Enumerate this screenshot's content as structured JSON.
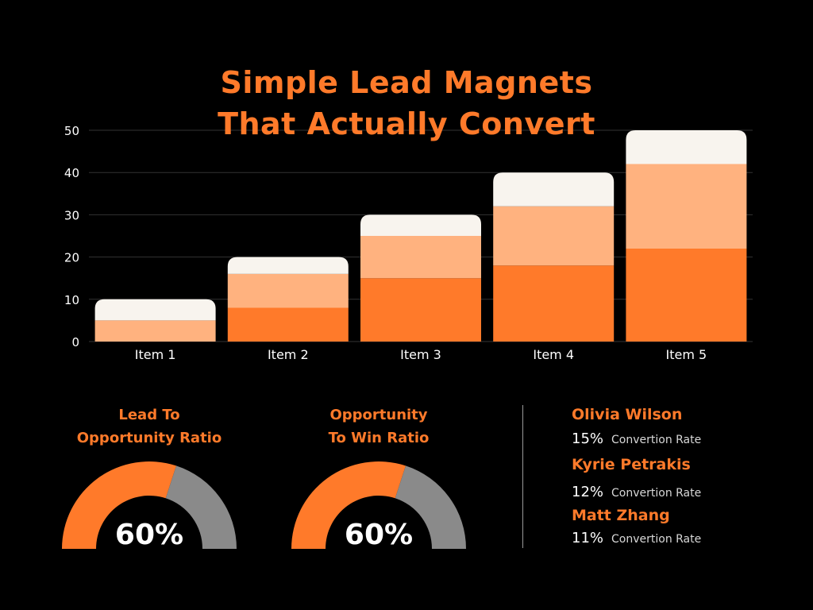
{
  "title": {
    "line1": "Simple Lead Magnets",
    "line2": "That Actually Convert"
  },
  "colors": {
    "background": "#000000",
    "accent": "#ff7a2a",
    "series_dark": "#ff7a2a",
    "series_mid": "#ffb27f",
    "series_light": "#f8f4ee",
    "gauge_rest": "#8a8a8a"
  },
  "chart_data": [
    {
      "type": "bar",
      "stacked": true,
      "categories": [
        "Item 1",
        "Item 2",
        "Item 3",
        "Item 4",
        "Item 5"
      ],
      "series": [
        {
          "values": [
            0,
            8,
            15,
            18,
            22
          ],
          "color": "#ff7a2a"
        },
        {
          "values": [
            5,
            8,
            10,
            14,
            20
          ],
          "color": "#ffb27f"
        },
        {
          "values": [
            5,
            4,
            5,
            8,
            8
          ],
          "color": "#f8f4ee"
        }
      ],
      "yticks": [
        "0",
        "10",
        "20",
        "30",
        "40",
        "50"
      ],
      "ylim": [
        0,
        50
      ],
      "grid": true,
      "xlabel": "",
      "ylabel": ""
    },
    {
      "type": "pie",
      "style": "half-donut gauge",
      "title_line1": "Lead To",
      "title_line2": "Opportunity Ratio",
      "value": 60,
      "label": "60%"
    },
    {
      "type": "pie",
      "style": "half-donut gauge",
      "title_line1": "Opportunity",
      "title_line2": "To Win Ratio",
      "value": 60,
      "label": "60%"
    }
  ],
  "people": [
    {
      "name": "Olivia Wilson",
      "rate": "15%",
      "rate_label": "Convertion Rate"
    },
    {
      "name": "Kyrie Petrakis",
      "rate": "12%",
      "rate_label": "Convertion Rate"
    },
    {
      "name": "Matt Zhang",
      "rate": "11%",
      "rate_label": "Convertion Rate"
    }
  ]
}
